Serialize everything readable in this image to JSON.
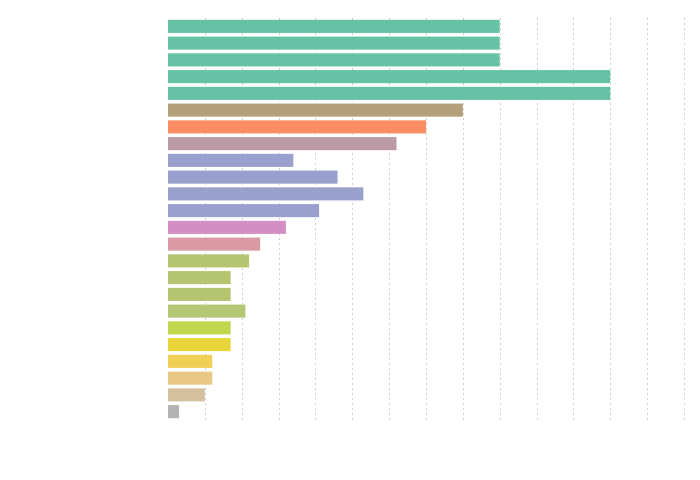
{
  "chart_data": {
    "type": "bar",
    "orientation": "horizontal",
    "title": "",
    "xlabel": "",
    "ylabel": "",
    "xlim": [
      0,
      14
    ],
    "grid": "vertical dashed",
    "legend": "none",
    "tick_labels_visible": false,
    "series": [
      {
        "values": [
          9,
          9,
          9,
          12,
          12,
          8,
          7,
          6.2,
          3.4,
          4.6,
          5.3,
          4.1,
          3.2,
          2.5,
          2.2,
          1.7,
          1.7,
          2.1,
          1.7,
          1.7,
          1.2,
          1.2,
          1.0,
          0.3
        ],
        "colors": [
          "#66c2a5",
          "#66c2a5",
          "#66c2a5",
          "#66c2a5",
          "#66c2a5",
          "#b5a07c",
          "#fc8d62",
          "#bc9aa5",
          "#9aa0cd",
          "#9aa0cd",
          "#9aa0cd",
          "#9aa0cd",
          "#d38fc4",
          "#d99aa3",
          "#b4c46f",
          "#b4c46f",
          "#b4c46f",
          "#b4c774",
          "#c1d64c",
          "#e8d53a",
          "#f1cf55",
          "#e8c884",
          "#d4c09f",
          "#b3b3b3"
        ]
      }
    ]
  }
}
